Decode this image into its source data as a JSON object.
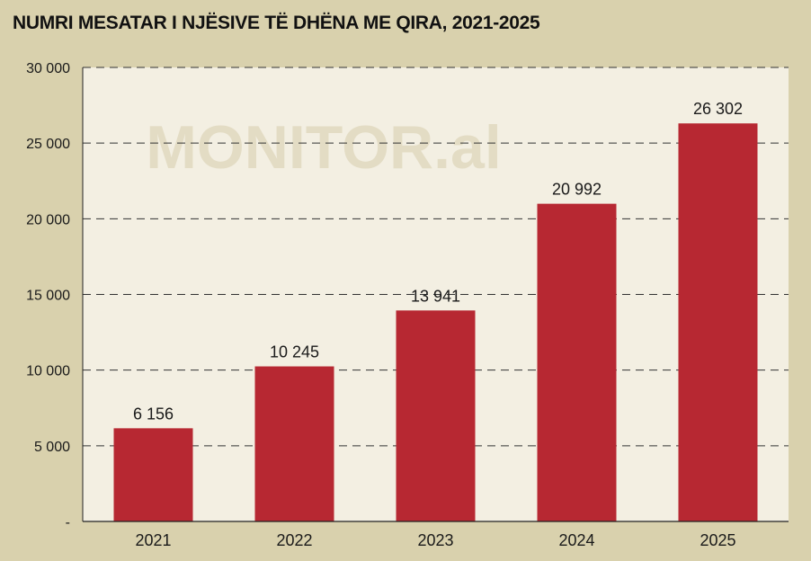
{
  "title": "NUMRI MESATAR I NJËSIVE TË DHËNA ME QIRA, 2021-2025",
  "watermark": "MONITOR.al",
  "colors": {
    "background": "#d9d1ad",
    "plot_area": "#f3efe2",
    "bar": "#b72832",
    "gridline": "#333333",
    "watermark": "#e3dcc4"
  },
  "chart_data": {
    "type": "bar",
    "title": "NUMRI MESATAR I NJËSIVE TË DHËNA ME QIRA, 2021-2025",
    "categories": [
      "2021",
      "2022",
      "2023",
      "2024",
      "2025"
    ],
    "values": [
      6156,
      10245,
      13941,
      20992,
      26302
    ],
    "value_labels": [
      "6 156",
      "10 245",
      "13 941",
      "20 992",
      "26 302"
    ],
    "xlabel": "",
    "ylabel": "",
    "ylim": [
      0,
      30000
    ],
    "yticks": [
      0,
      5000,
      10000,
      15000,
      20000,
      25000,
      30000
    ],
    "ytick_labels": [
      "-",
      "5 000",
      "10 000",
      "15 000",
      "20 000",
      "25 000",
      "30 000"
    ],
    "grid": "horizontal dashed",
    "legend": "none"
  }
}
